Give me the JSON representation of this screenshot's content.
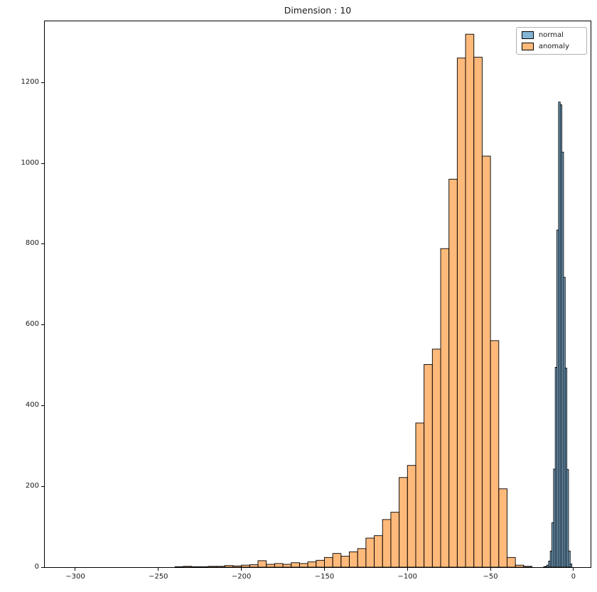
{
  "chart_data": {
    "type": "bar",
    "subtype": "histogram",
    "title": "Dimension : 10",
    "xlabel": "",
    "ylabel": "",
    "xlim": [
      -318.4,
      10.3
    ],
    "ylim": [
      0,
      1352
    ],
    "xticks": [
      -300,
      -250,
      -200,
      -150,
      -100,
      -50,
      0
    ],
    "yticks": [
      0,
      200,
      400,
      600,
      800,
      1000,
      1200
    ],
    "grid": false,
    "legend_position": "upper right",
    "series": [
      {
        "name": "normal",
        "color": "#1f77b4",
        "edge_color": "#000000",
        "fill_opacity": 0.55,
        "bin_start": -18,
        "bin_width": 1,
        "counts": [
          1,
          2,
          5,
          15,
          40,
          110,
          243,
          495,
          835,
          1152,
          1145,
          1028,
          718,
          493,
          242,
          40,
          8
        ]
      },
      {
        "name": "anomaly",
        "color": "#ff7f0e",
        "edge_color": "#000000",
        "fill_opacity": 0.55,
        "bin_start": -240,
        "bin_width": 5,
        "counts": [
          1,
          2,
          1,
          1,
          2,
          2,
          4,
          3,
          5,
          6,
          16,
          7,
          9,
          7,
          11,
          9,
          13,
          17,
          24,
          34,
          27,
          38,
          46,
          72,
          78,
          118,
          136,
          222,
          252,
          357,
          502,
          540,
          789,
          961,
          1261,
          1320,
          1263,
          1018,
          561,
          194,
          24,
          5,
          2
        ]
      }
    ]
  }
}
